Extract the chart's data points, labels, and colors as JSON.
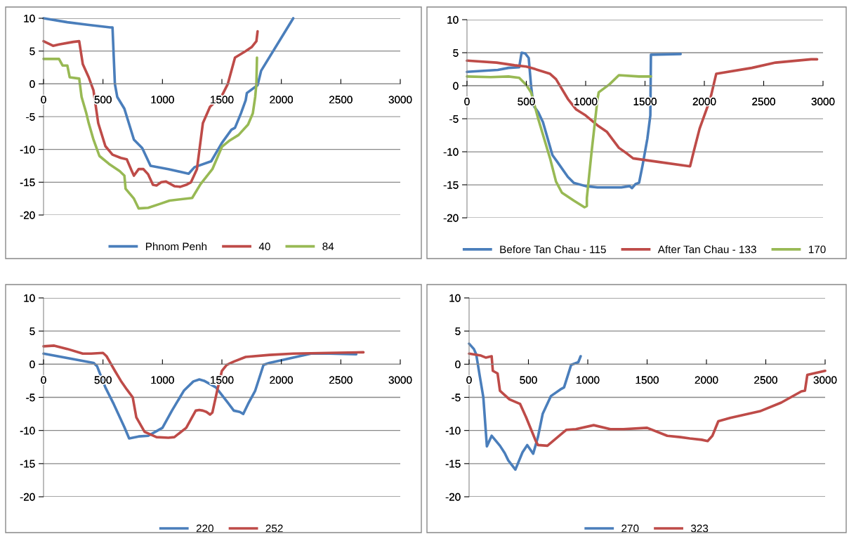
{
  "chart_data": [
    {
      "type": "line",
      "xlim": [
        0,
        3000
      ],
      "xticks": [
        0,
        500,
        1000,
        1500,
        2000,
        2500,
        3000
      ],
      "ylim": [
        -20,
        10
      ],
      "yticks": [
        -20,
        -15,
        -10,
        -5,
        0,
        5,
        10
      ],
      "grid": "y",
      "legend": "bottom",
      "series": [
        {
          "name": "Phnom Penh",
          "color": "#4a7ebb",
          "x": [
            0,
            200,
            370,
            560,
            580,
            600,
            620,
            680,
            760,
            830,
            900,
            1050,
            1220,
            1270,
            1410,
            1500,
            1580,
            1610,
            1660,
            1700,
            1710,
            1800,
            1830,
            2100
          ],
          "values": [
            10,
            9.4,
            9,
            8.6,
            8.6,
            0,
            -2,
            -3.8,
            -8.5,
            -9.8,
            -12.5,
            -13,
            -13.7,
            -12.7,
            -11.8,
            -9,
            -7,
            -6.7,
            -4.5,
            -2.5,
            -1.4,
            -0.2,
            2,
            10
          ]
        },
        {
          "name": "40",
          "color": "#be4b48",
          "x": [
            0,
            80,
            130,
            250,
            300,
            330,
            380,
            420,
            460,
            520,
            580,
            650,
            700,
            740,
            760,
            800,
            840,
            880,
            920,
            950,
            990,
            1030,
            1100,
            1150,
            1200,
            1240,
            1290,
            1340,
            1400,
            1500,
            1550,
            1610,
            1700,
            1750,
            1790,
            1800
          ],
          "values": [
            6.5,
            5.8,
            6,
            6.4,
            6.5,
            3,
            1,
            -1,
            -6,
            -9.5,
            -10.8,
            -11.3,
            -11.5,
            -13.2,
            -14,
            -13,
            -13,
            -13.8,
            -15.4,
            -15.5,
            -15,
            -14.9,
            -15.6,
            -15.7,
            -15.4,
            -15,
            -13,
            -6,
            -3.5,
            -1.8,
            0,
            4,
            5,
            5.6,
            6.5,
            8
          ]
        },
        {
          "name": "84",
          "color": "#98b954",
          "x": [
            0,
            130,
            160,
            200,
            220,
            300,
            320,
            360,
            380,
            420,
            470,
            550,
            640,
            680,
            690,
            760,
            800,
            880,
            980,
            1060,
            1250,
            1320,
            1420,
            1500,
            1560,
            1640,
            1720,
            1760,
            1780,
            1790,
            1795
          ],
          "values": [
            3.8,
            3.8,
            2.8,
            2.8,
            1,
            0.8,
            -2,
            -4.5,
            -6,
            -8.5,
            -11,
            -12.2,
            -13.3,
            -14,
            -16,
            -17.5,
            -19,
            -18.9,
            -18.3,
            -17.8,
            -17.4,
            -15.3,
            -13,
            -9.6,
            -8.7,
            -7.8,
            -6.2,
            -4.5,
            -2,
            0,
            4
          ]
        }
      ]
    },
    {
      "type": "line",
      "xlim": [
        0,
        3000
      ],
      "xticks": [
        0,
        500,
        1000,
        1500,
        2000,
        2500,
        3000
      ],
      "ylim": [
        -20,
        10
      ],
      "yticks": [
        -20,
        -15,
        -10,
        -5,
        0,
        5,
        10
      ],
      "grid": "y",
      "legend": "bottom",
      "series": [
        {
          "name": "Before Tan Chau - 115",
          "color": "#4a7ebb",
          "x": [
            0,
            260,
            350,
            440,
            460,
            490,
            520,
            540,
            560,
            600,
            640,
            720,
            760,
            850,
            900,
            1000,
            1100,
            1300,
            1370,
            1390,
            1420,
            1450,
            1480,
            1520,
            1545,
            1550,
            1800
          ],
          "values": [
            2.1,
            2.4,
            2.7,
            2.8,
            5,
            4.9,
            4.2,
            0,
            -3,
            -4,
            -5.5,
            -10.5,
            -11.5,
            -13.8,
            -14.7,
            -15.2,
            -15.4,
            -15.4,
            -15.2,
            -15.5,
            -14.9,
            -14.7,
            -12,
            -8,
            -4.5,
            4.7,
            4.8
          ]
        },
        {
          "name": "After Tan Chau - 133",
          "color": "#be4b48",
          "x": [
            0,
            250,
            400,
            500,
            560,
            700,
            750,
            850,
            920,
            1000,
            1100,
            1180,
            1280,
            1350,
            1400,
            1600,
            1880,
            1910,
            1960,
            2050,
            2100,
            2400,
            2600,
            2900,
            2950
          ],
          "values": [
            3.8,
            3.5,
            3.1,
            2.9,
            2.6,
            1.8,
            1,
            -2,
            -3.6,
            -4.5,
            -6,
            -7,
            -9.4,
            -10.3,
            -11,
            -11.5,
            -12.2,
            -10,
            -6.5,
            -2,
            1.8,
            2.7,
            3.5,
            4,
            4
          ]
        },
        {
          "name": "170",
          "color": "#98b954",
          "x": [
            0,
            200,
            350,
            440,
            500,
            540,
            600,
            650,
            700,
            750,
            800,
            900,
            990,
            1010,
            1010,
            1050,
            1100,
            1110,
            1200,
            1280,
            1450,
            1550
          ],
          "values": [
            1.4,
            1.3,
            1.4,
            1.2,
            0.1,
            -1,
            -5,
            -8,
            -11,
            -14.5,
            -16.2,
            -17.4,
            -18.4,
            -18.2,
            -17,
            -10,
            -2,
            -1,
            0.2,
            1.6,
            1.4,
            1.4
          ]
        }
      ]
    },
    {
      "type": "line",
      "xlim": [
        0,
        3000
      ],
      "xticks": [
        0,
        500,
        1000,
        1500,
        2000,
        2500,
        3000
      ],
      "ylim": [
        -20,
        10
      ],
      "yticks": [
        -20,
        -15,
        -10,
        -5,
        0,
        5,
        10
      ],
      "grid": "y",
      "legend": "bottom",
      "series": [
        {
          "name": "220",
          "color": "#4a7ebb",
          "x": [
            0,
            420,
            450,
            520,
            590,
            680,
            720,
            800,
            880,
            950,
            1000,
            1080,
            1180,
            1260,
            1310,
            1350,
            1450,
            1550,
            1600,
            1650,
            1680,
            1720,
            1780,
            1850,
            1900,
            2250,
            2400,
            2630
          ],
          "values": [
            1.6,
            0.2,
            -0.3,
            -3.5,
            -6,
            -9.5,
            -11.2,
            -10.9,
            -10.8,
            -10.1,
            -9.6,
            -7,
            -4,
            -2.6,
            -2.3,
            -2.5,
            -3.5,
            -5.8,
            -7,
            -7.2,
            -7.5,
            -6,
            -4,
            -0.1,
            0.2,
            1.6,
            1.6,
            1.5
          ]
        },
        {
          "name": "252",
          "color": "#be4b48",
          "x": [
            0,
            90,
            200,
            330,
            400,
            500,
            530,
            600,
            650,
            700,
            750,
            780,
            850,
            950,
            1050,
            1100,
            1200,
            1280,
            1310,
            1340,
            1370,
            1400,
            1420,
            1460,
            1500,
            1540,
            1600,
            1700,
            1900,
            2100,
            2400,
            2690
          ],
          "values": [
            2.7,
            2.8,
            2.3,
            1.6,
            1.6,
            1.7,
            1.2,
            -1,
            -2.5,
            -3.8,
            -5,
            -8,
            -10.2,
            -11,
            -11.1,
            -11,
            -9.6,
            -7,
            -6.9,
            -7,
            -7.2,
            -7.6,
            -7.3,
            -4,
            -1,
            -0.1,
            0.4,
            1.1,
            1.4,
            1.6,
            1.7,
            1.8
          ]
        }
      ]
    },
    {
      "type": "line",
      "xlim": [
        0,
        3000
      ],
      "xticks": [
        0,
        500,
        1000,
        1500,
        2000,
        2500,
        3000
      ],
      "ylim": [
        -20,
        10
      ],
      "yticks": [
        -20,
        -15,
        -10,
        -5,
        0,
        5,
        10
      ],
      "grid": "y",
      "legend": "bottom",
      "series": [
        {
          "name": "270",
          "color": "#4a7ebb",
          "x": [
            0,
            40,
            60,
            90,
            120,
            150,
            190,
            260,
            300,
            330,
            390,
            450,
            490,
            540,
            580,
            620,
            690,
            770,
            800,
            860,
            920,
            940
          ],
          "values": [
            3.1,
            2.3,
            1.5,
            -1.8,
            -5,
            -12.4,
            -10.8,
            -12.3,
            -13.4,
            -14.5,
            -15.9,
            -13.3,
            -12.2,
            -13.5,
            -11,
            -7.5,
            -4.8,
            -3.8,
            -3.5,
            -0.1,
            0.3,
            1.2
          ]
        },
        {
          "name": "323",
          "color": "#be4b48",
          "x": [
            0,
            100,
            140,
            190,
            200,
            240,
            260,
            340,
            430,
            480,
            560,
            580,
            660,
            760,
            820,
            900,
            1050,
            1190,
            1300,
            1500,
            1670,
            1780,
            1860,
            1960,
            2010,
            2050,
            2100,
            2200,
            2450,
            2630,
            2800,
            2830,
            2850,
            3000
          ],
          "values": [
            1.6,
            1.3,
            1,
            1.2,
            -1,
            -1.4,
            -4,
            -5.3,
            -6,
            -8,
            -11.5,
            -12.2,
            -12.3,
            -10.8,
            -9.9,
            -9.8,
            -9.2,
            -9.8,
            -9.8,
            -9.6,
            -10.8,
            -11,
            -11.2,
            -11.4,
            -11.6,
            -10.8,
            -8.6,
            -8.1,
            -7.1,
            -5.8,
            -4.1,
            -4,
            -1.6,
            -1
          ]
        }
      ]
    }
  ]
}
